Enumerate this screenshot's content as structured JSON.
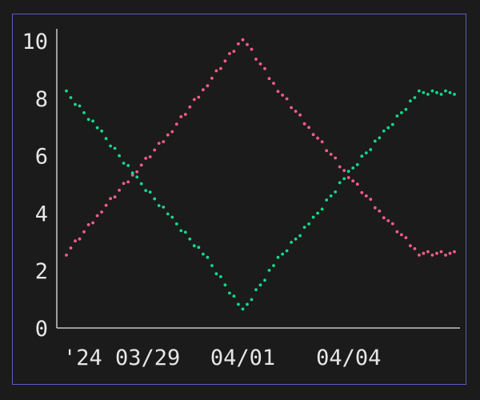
{
  "chart_data": {
    "type": "scatter",
    "title": "",
    "xlabel": "",
    "ylabel": "",
    "x_tick_labels": [
      "'24 03/29",
      "04/01",
      "04/04"
    ],
    "x_tick_dates": [
      "2024-03-29",
      "2024-04-01",
      "2024-04-04"
    ],
    "y_ticks": [
      0,
      2,
      4,
      6,
      8,
      10
    ],
    "y_tick_labels": [
      "0",
      "2",
      "4",
      "6",
      "8",
      "10"
    ],
    "xlim": [
      "2024-03-27",
      "2024-04-07"
    ],
    "ylim": [
      0,
      10.2
    ],
    "grid": false,
    "legend": "none",
    "colors": {
      "background": "#1b1b1b",
      "frame": "#5a5cc4",
      "axis": "#e6e6e6",
      "series_pink": "#ff5c8a",
      "series_green": "#14d98c"
    },
    "series": [
      {
        "color": "#ff5c8a",
        "x": [
          "2024-03-27",
          "2024-03-28",
          "2024-03-29",
          "2024-03-30",
          "2024-03-31",
          "2024-04-01",
          "2024-04-02",
          "2024-04-03",
          "2024-04-04",
          "2024-04-05",
          "2024-04-06",
          "2024-04-07"
        ],
        "y": [
          2.6,
          4.1,
          5.5,
          6.9,
          8.5,
          10.1,
          8.3,
          6.8,
          5.3,
          3.9,
          2.6,
          2.6
        ],
        "points_per_day": 8,
        "end": "2024-04-07"
      },
      {
        "color": "#14d98c",
        "x": [
          "2024-03-27",
          "2024-03-28",
          "2024-03-29",
          "2024-03-30",
          "2024-03-31",
          "2024-04-01",
          "2024-04-02",
          "2024-04-03",
          "2024-04-04",
          "2024-04-05",
          "2024-04-06",
          "2024-04-07"
        ],
        "y": [
          8.2,
          6.8,
          5.2,
          3.8,
          2.4,
          0.6,
          2.4,
          3.8,
          5.4,
          6.8,
          8.2,
          8.2
        ],
        "points_per_day": 8,
        "end": "2024-04-07"
      }
    ]
  }
}
